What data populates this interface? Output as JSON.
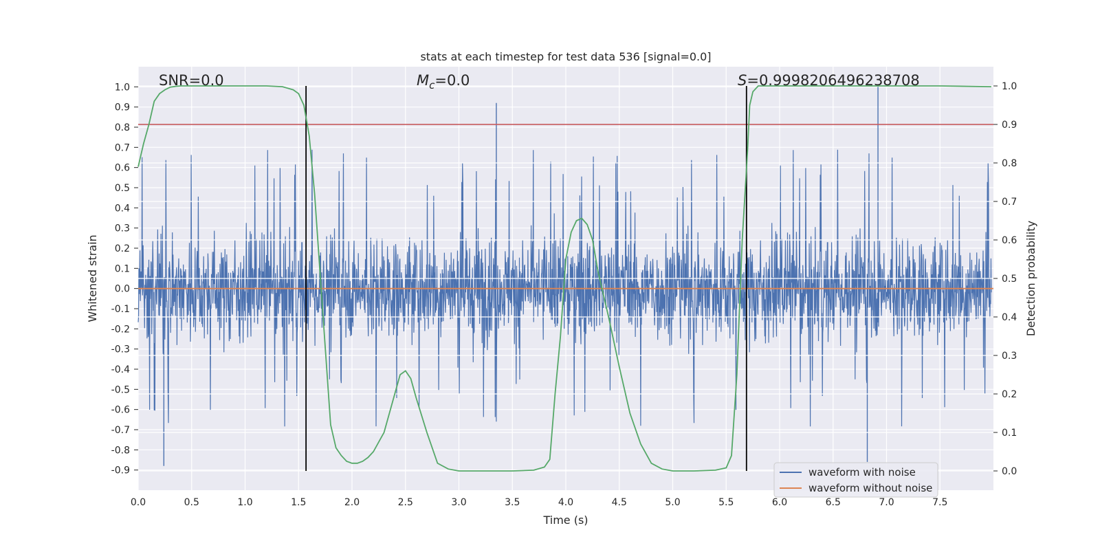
{
  "chart_data": {
    "type": "line",
    "title": "stats at each timestep for test data 536 [signal=0.0]",
    "xlabel": "Time (s)",
    "ylabel_left": "Whitened strain",
    "ylabel_right": "Detection probability",
    "xlim": [
      0.0,
      8.0
    ],
    "ylim_left": [
      -1.0,
      1.1
    ],
    "ylim_right": [
      -0.05,
      1.05
    ],
    "x_ticks": [
      "0.0",
      "0.5",
      "1.0",
      "1.5",
      "2.0",
      "2.5",
      "3.0",
      "3.5",
      "4.0",
      "4.5",
      "5.0",
      "5.5",
      "6.0",
      "6.5",
      "7.0",
      "7.5"
    ],
    "x_tick_values": [
      0.0,
      0.5,
      1.0,
      1.5,
      2.0,
      2.5,
      3.0,
      3.5,
      4.0,
      4.5,
      5.0,
      5.5,
      6.0,
      6.5,
      7.0,
      7.5
    ],
    "y_left_ticks": [
      "1.0",
      "0.9",
      "0.8",
      "0.7",
      "0.6",
      "0.5",
      "0.4",
      "0.3",
      "0.2",
      "0.1",
      "0.0",
      "-0.1",
      "-0.2",
      "-0.3",
      "-0.4",
      "-0.5",
      "-0.6",
      "-0.7",
      "-0.8",
      "-0.9"
    ],
    "y_left_tick_values": [
      1.0,
      0.9,
      0.8,
      0.7,
      0.6,
      0.5,
      0.4,
      0.3,
      0.2,
      0.1,
      0.0,
      -0.1,
      -0.2,
      -0.3,
      -0.4,
      -0.5,
      -0.6,
      -0.7,
      -0.8,
      -0.9
    ],
    "y_right_ticks": [
      "1.0",
      "0.9",
      "0.8",
      "0.7",
      "0.6",
      "0.5",
      "0.4",
      "0.3",
      "0.2",
      "0.1",
      "0.0"
    ],
    "y_right_tick_values": [
      1.0,
      0.9,
      0.8,
      0.7,
      0.6,
      0.5,
      0.4,
      0.3,
      0.2,
      0.1,
      0.0
    ],
    "annotations": {
      "snr": "SNR=0.0",
      "mc_symbol": "M",
      "mc_sub": "c",
      "mc_value": "=0.0",
      "s_symbol": "S",
      "s_value": "=0.9998206496238708"
    },
    "noise_series": {
      "name": "waveform with noise",
      "color": "#4c72b0",
      "typical_envelope": [
        -0.45,
        0.45
      ],
      "max": 1.0,
      "min": -0.9
    },
    "clean_series": {
      "name": "waveform without noise",
      "color": "#dd8452",
      "value": 0.0
    },
    "probability_series": {
      "name": "detection probability",
      "color": "#55a868",
      "x": [
        0.0,
        0.05,
        0.1,
        0.15,
        0.2,
        0.25,
        0.3,
        0.35,
        0.4,
        0.5,
        0.75,
        1.0,
        1.2,
        1.35,
        1.45,
        1.5,
        1.55,
        1.6,
        1.65,
        1.7,
        1.75,
        1.8,
        1.85,
        1.9,
        1.95,
        2.0,
        2.05,
        2.1,
        2.15,
        2.2,
        2.3,
        2.4,
        2.45,
        2.5,
        2.55,
        2.6,
        2.7,
        2.8,
        2.9,
        3.0,
        3.2,
        3.5,
        3.7,
        3.8,
        3.85,
        3.9,
        3.95,
        4.0,
        4.05,
        4.1,
        4.15,
        4.2,
        4.25,
        4.3,
        4.4,
        4.5,
        4.6,
        4.7,
        4.8,
        4.9,
        5.0,
        5.2,
        5.4,
        5.5,
        5.55,
        5.6,
        5.65,
        5.7,
        5.72,
        5.75,
        5.8,
        5.9,
        6.0,
        7.0,
        7.5,
        7.98
      ],
      "values": [
        0.79,
        0.85,
        0.9,
        0.96,
        0.98,
        0.99,
        0.997,
        0.999,
        1.0,
        1.0,
        1.0,
        1.0,
        1.0,
        0.998,
        0.99,
        0.98,
        0.95,
        0.87,
        0.72,
        0.52,
        0.32,
        0.12,
        0.06,
        0.04,
        0.025,
        0.02,
        0.02,
        0.025,
        0.035,
        0.05,
        0.1,
        0.2,
        0.25,
        0.26,
        0.24,
        0.19,
        0.1,
        0.02,
        0.005,
        0.0,
        0.0,
        0.0,
        0.002,
        0.01,
        0.03,
        0.2,
        0.35,
        0.55,
        0.62,
        0.65,
        0.656,
        0.64,
        0.6,
        0.52,
        0.4,
        0.27,
        0.15,
        0.07,
        0.02,
        0.005,
        0.0,
        0.0,
        0.002,
        0.008,
        0.04,
        0.25,
        0.6,
        0.83,
        0.95,
        0.985,
        1.0,
        1.0,
        1.0,
        1.0,
        1.0,
        0.998
      ]
    },
    "threshold": {
      "value": 0.9,
      "axis": "right",
      "color": "#c44e52"
    },
    "vertical_lines": [
      1.57,
      5.69
    ],
    "legend": {
      "placement": "lower-right",
      "entries": [
        "waveform with noise",
        "waveform without noise"
      ]
    }
  }
}
